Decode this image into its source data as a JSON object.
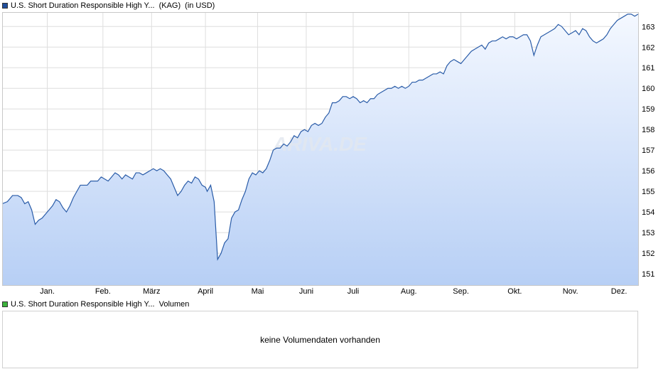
{
  "legend_price": {
    "name": "U.S. Short Duration Responsible High Y...",
    "tag": "(KAG)",
    "unit": "(in USD)",
    "color": "#1f4e9c"
  },
  "legend_volume": {
    "name": "U.S. Short Duration Responsible High Y...",
    "label": "Volumen",
    "color": "#3cb33c"
  },
  "volume_message": "keine Volumendaten vorhanden",
  "watermark": "ARIVA.DE",
  "chart_data": {
    "type": "area",
    "title": "",
    "xlabel": "",
    "ylabel": "",
    "ylim": [
      150.45,
      163.7
    ],
    "xlim": [
      0,
      366
    ],
    "yticks": [
      151,
      152,
      153,
      154,
      155,
      156,
      157,
      158,
      159,
      160,
      161,
      162,
      163
    ],
    "xticks": [
      {
        "label": "Jan.",
        "day": 26
      },
      {
        "label": "Feb.",
        "day": 58
      },
      {
        "label": "März",
        "day": 86
      },
      {
        "label": "April",
        "day": 117
      },
      {
        "label": "Mai",
        "day": 147
      },
      {
        "label": "Juni",
        "day": 175
      },
      {
        "label": "Juli",
        "day": 202
      },
      {
        "label": "Aug.",
        "day": 234
      },
      {
        "label": "Sep.",
        "day": 264
      },
      {
        "label": "Okt.",
        "day": 295
      },
      {
        "label": "Nov.",
        "day": 327
      },
      {
        "label": "Dez.",
        "day": 355
      }
    ],
    "grid": true,
    "line_color": "#2a5ca8",
    "fill_top": "#f4f8ff",
    "fill_bottom": "#b7cff5",
    "series": [
      {
        "points": [
          [
            0,
            154.4
          ],
          [
            3,
            154.5
          ],
          [
            6,
            154.8
          ],
          [
            9,
            154.8
          ],
          [
            11,
            154.7
          ],
          [
            13,
            154.4
          ],
          [
            15,
            154.5
          ],
          [
            17,
            154.1
          ],
          [
            19,
            153.4
          ],
          [
            21,
            153.6
          ],
          [
            23,
            153.7
          ],
          [
            25,
            153.9
          ],
          [
            27,
            154.1
          ],
          [
            29,
            154.3
          ],
          [
            31,
            154.6
          ],
          [
            33,
            154.5
          ],
          [
            35,
            154.2
          ],
          [
            37,
            154.0
          ],
          [
            39,
            154.3
          ],
          [
            41,
            154.7
          ],
          [
            43,
            155.0
          ],
          [
            45,
            155.3
          ],
          [
            47,
            155.3
          ],
          [
            49,
            155.3
          ],
          [
            51,
            155.5
          ],
          [
            53,
            155.5
          ],
          [
            55,
            155.5
          ],
          [
            57,
            155.7
          ],
          [
            59,
            155.6
          ],
          [
            61,
            155.5
          ],
          [
            63,
            155.7
          ],
          [
            65,
            155.9
          ],
          [
            67,
            155.8
          ],
          [
            69,
            155.6
          ],
          [
            71,
            155.8
          ],
          [
            73,
            155.7
          ],
          [
            75,
            155.6
          ],
          [
            77,
            155.9
          ],
          [
            79,
            155.9
          ],
          [
            81,
            155.8
          ],
          [
            83,
            155.9
          ],
          [
            85,
            156.0
          ],
          [
            87,
            156.1
          ],
          [
            89,
            156.0
          ],
          [
            91,
            156.1
          ],
          [
            93,
            156.0
          ],
          [
            95,
            155.8
          ],
          [
            97,
            155.6
          ],
          [
            99,
            155.2
          ],
          [
            101,
            154.8
          ],
          [
            103,
            155.0
          ],
          [
            105,
            155.3
          ],
          [
            107,
            155.5
          ],
          [
            109,
            155.4
          ],
          [
            111,
            155.7
          ],
          [
            113,
            155.6
          ],
          [
            115,
            155.3
          ],
          [
            117,
            155.2
          ],
          [
            118,
            155.0
          ],
          [
            120,
            155.3
          ],
          [
            122,
            154.5
          ],
          [
            124,
            151.7
          ],
          [
            126,
            152.0
          ],
          [
            128,
            152.5
          ],
          [
            130,
            152.7
          ],
          [
            132,
            153.7
          ],
          [
            134,
            154.0
          ],
          [
            136,
            154.1
          ],
          [
            138,
            154.6
          ],
          [
            140,
            155.0
          ],
          [
            142,
            155.6
          ],
          [
            144,
            155.9
          ],
          [
            146,
            155.8
          ],
          [
            148,
            156.0
          ],
          [
            150,
            155.9
          ],
          [
            152,
            156.1
          ],
          [
            154,
            156.5
          ],
          [
            156,
            157.0
          ],
          [
            158,
            157.1
          ],
          [
            160,
            157.1
          ],
          [
            162,
            157.3
          ],
          [
            164,
            157.2
          ],
          [
            166,
            157.4
          ],
          [
            168,
            157.7
          ],
          [
            170,
            157.6
          ],
          [
            172,
            157.9
          ],
          [
            174,
            158.0
          ],
          [
            176,
            157.9
          ],
          [
            178,
            158.2
          ],
          [
            180,
            158.3
          ],
          [
            182,
            158.2
          ],
          [
            184,
            158.3
          ],
          [
            186,
            158.6
          ],
          [
            188,
            158.8
          ],
          [
            190,
            159.3
          ],
          [
            192,
            159.3
          ],
          [
            194,
            159.4
          ],
          [
            196,
            159.6
          ],
          [
            198,
            159.6
          ],
          [
            200,
            159.5
          ],
          [
            202,
            159.6
          ],
          [
            204,
            159.5
          ],
          [
            206,
            159.3
          ],
          [
            208,
            159.4
          ],
          [
            210,
            159.3
          ],
          [
            212,
            159.5
          ],
          [
            214,
            159.5
          ],
          [
            216,
            159.7
          ],
          [
            218,
            159.8
          ],
          [
            220,
            159.9
          ],
          [
            222,
            160.0
          ],
          [
            224,
            160.0
          ],
          [
            226,
            160.1
          ],
          [
            228,
            160.0
          ],
          [
            230,
            160.1
          ],
          [
            232,
            160.0
          ],
          [
            234,
            160.1
          ],
          [
            236,
            160.3
          ],
          [
            238,
            160.3
          ],
          [
            240,
            160.4
          ],
          [
            242,
            160.4
          ],
          [
            244,
            160.5
          ],
          [
            246,
            160.6
          ],
          [
            248,
            160.7
          ],
          [
            250,
            160.7
          ],
          [
            252,
            160.8
          ],
          [
            254,
            160.7
          ],
          [
            256,
            161.1
          ],
          [
            258,
            161.3
          ],
          [
            260,
            161.4
          ],
          [
            262,
            161.3
          ],
          [
            264,
            161.2
          ],
          [
            266,
            161.4
          ],
          [
            268,
            161.6
          ],
          [
            270,
            161.8
          ],
          [
            272,
            161.9
          ],
          [
            274,
            162.0
          ],
          [
            276,
            162.1
          ],
          [
            278,
            161.9
          ],
          [
            280,
            162.2
          ],
          [
            282,
            162.3
          ],
          [
            284,
            162.3
          ],
          [
            286,
            162.4
          ],
          [
            288,
            162.5
          ],
          [
            290,
            162.4
          ],
          [
            292,
            162.5
          ],
          [
            294,
            162.5
          ],
          [
            296,
            162.4
          ],
          [
            298,
            162.5
          ],
          [
            300,
            162.6
          ],
          [
            302,
            162.6
          ],
          [
            304,
            162.3
          ],
          [
            306,
            161.6
          ],
          [
            308,
            162.1
          ],
          [
            310,
            162.5
          ],
          [
            312,
            162.6
          ],
          [
            314,
            162.7
          ],
          [
            316,
            162.8
          ],
          [
            318,
            162.9
          ],
          [
            320,
            163.1
          ],
          [
            322,
            163.0
          ],
          [
            324,
            162.8
          ],
          [
            326,
            162.6
          ],
          [
            328,
            162.7
          ],
          [
            330,
            162.8
          ],
          [
            332,
            162.6
          ],
          [
            334,
            162.9
          ],
          [
            336,
            162.8
          ],
          [
            338,
            162.5
          ],
          [
            340,
            162.3
          ],
          [
            342,
            162.2
          ],
          [
            344,
            162.3
          ],
          [
            346,
            162.4
          ],
          [
            348,
            162.6
          ],
          [
            350,
            162.9
          ],
          [
            352,
            163.1
          ],
          [
            354,
            163.3
          ],
          [
            356,
            163.4
          ],
          [
            358,
            163.5
          ],
          [
            360,
            163.6
          ],
          [
            362,
            163.6
          ],
          [
            364,
            163.5
          ],
          [
            366,
            163.6
          ]
        ]
      }
    ]
  }
}
